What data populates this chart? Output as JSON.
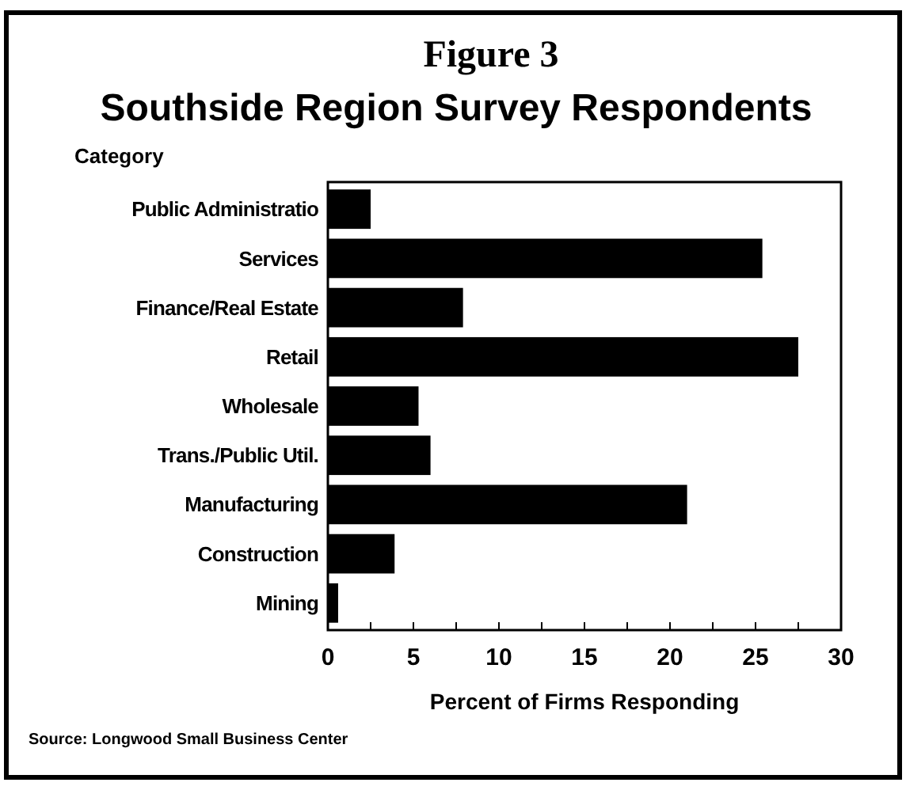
{
  "chart_data": {
    "type": "bar",
    "orientation": "horizontal",
    "title": "Figure 3",
    "subtitle": "Southside Region Survey Respondents",
    "ylabel": "Category",
    "xlabel": "Percent of Firms Responding",
    "categories": [
      "Public Administratio",
      "Services",
      "Finance/Real Estate",
      "Retail",
      "Wholesale",
      "Trans./Public Util.",
      "Manufacturing",
      "Construction",
      "Mining"
    ],
    "values": [
      2.5,
      25.4,
      7.9,
      27.5,
      5.3,
      6.0,
      21.0,
      3.9,
      0.6
    ],
    "color": "#000000",
    "xlim": [
      0,
      30
    ],
    "xticks": [
      0,
      {
        "value": 2.5,
        "label": null
      },
      5,
      {
        "value": 7.5,
        "label": null
      },
      10,
      {
        "value": 12.5,
        "label": null
      },
      15,
      {
        "value": 17.5,
        "label": null
      },
      20,
      {
        "value": 22.5,
        "label": null
      },
      25,
      {
        "value": 27.5,
        "label": null
      },
      30
    ],
    "grid": false,
    "annotations": [
      "Source: Longwood Small Business Center"
    ]
  }
}
